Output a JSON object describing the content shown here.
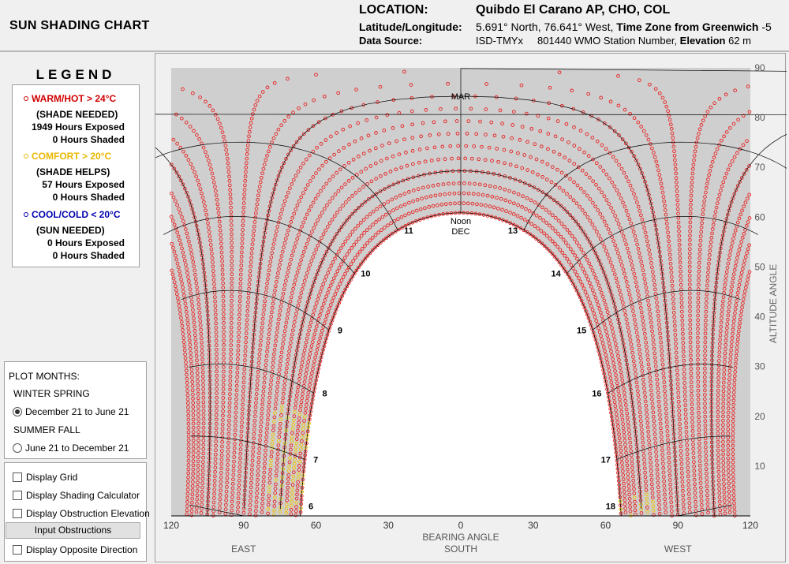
{
  "title": "SUN SHADING CHART",
  "header": {
    "location_label": "LOCATION:",
    "location_value": "Quibdo El Carano AP, CHO, COL",
    "latlon_label": "Latitude/Longitude:",
    "latlon_value": "5.691° North, 76.641° West,",
    "tz_label": "Time Zone from Greenwich",
    "tz_value": "-5",
    "source_label": "Data Source:",
    "source_value": "ISD-TMYx",
    "station_value": "801440 WMO Station Number,",
    "elevation_label": "Elevation",
    "elevation_value": "62 m"
  },
  "legend": {
    "title": "LEGEND",
    "warm": {
      "label": "WARM/HOT  > 24°C",
      "note": "(SHADE NEEDED)",
      "exposed": "1949 Hours Exposed",
      "shaded": "0 Hours Shaded",
      "color": "#e00000"
    },
    "comfort": {
      "label": "COMFORT  > 20°C",
      "note": "(SHADE HELPS)",
      "exposed": "57 Hours Exposed",
      "shaded": "0 Hours Shaded",
      "color": "#f0c000"
    },
    "cool": {
      "label": "COOL/COLD  < 20°C",
      "note": "(SUN NEEDED)",
      "exposed": "0 Hours Exposed",
      "shaded": "0 Hours Shaded",
      "color": "#0000c0"
    }
  },
  "plot_months": {
    "title": "PLOT MONTHS:",
    "group1": "WINTER SPRING",
    "option1": "December 21 to June 21",
    "group2": "SUMMER FALL",
    "option2": "June 21 to December 21",
    "selected": 1
  },
  "options": {
    "display_grid": "Display Grid",
    "shading_calc": "Display Shading Calculator",
    "obstruction_elev": "Display Obstruction Elevation",
    "input_obstructions": "Input Obstructions",
    "opposite_direction": "Display Opposite Direction"
  },
  "chart_data": {
    "type": "scatter",
    "xlabel": "BEARING ANGLE",
    "ylabel": "ALTITUDE ANGLE",
    "x_ticks": [
      "120",
      "90",
      "60",
      "30",
      "0",
      "30",
      "60",
      "90",
      "120"
    ],
    "y_ticks": [
      "10",
      "20",
      "30",
      "40",
      "50",
      "60",
      "70",
      "80",
      "90"
    ],
    "direction_labels": {
      "east": "EAST",
      "south": "SOUTH",
      "west": "WEST"
    },
    "xlim": [
      -120,
      120
    ],
    "ylim": [
      0,
      90
    ],
    "latitude": 5.691,
    "month_labels": {
      "mar": "MAR",
      "dec_noon": "Noon",
      "dec": "DEC"
    },
    "hour_labels": [
      "6",
      "7",
      "8",
      "9",
      "10",
      "11",
      "13",
      "14",
      "15",
      "16",
      "17",
      "18"
    ],
    "colors": {
      "warm": "#e82020",
      "comfort": "#f0c000",
      "background": "#cfcfcf",
      "grid": "#000000"
    }
  }
}
